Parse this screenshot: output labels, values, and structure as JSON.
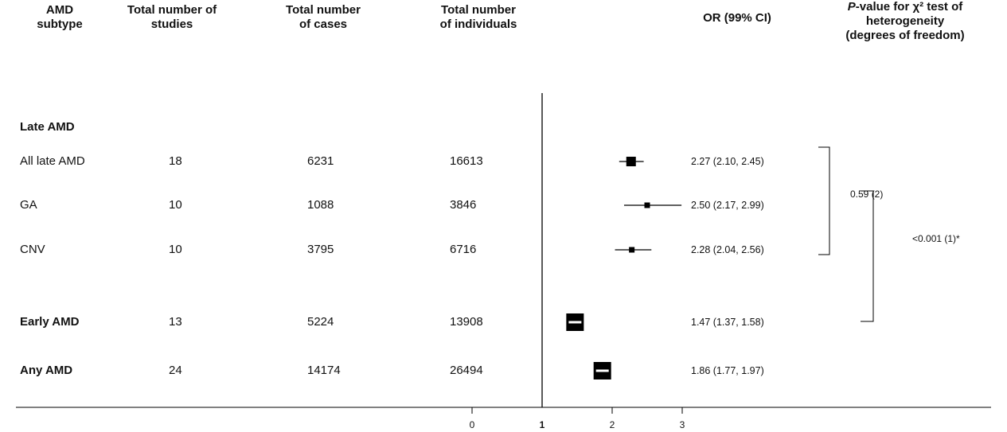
{
  "headers": {
    "subtype": [
      "AMD",
      "subtype"
    ],
    "studies": [
      "Total number of",
      "studies"
    ],
    "cases": [
      "Total number",
      "of cases"
    ],
    "individuals": [
      "Total number",
      "of individuals"
    ],
    "or": "OR (99% CI)",
    "het_p": "P",
    "het_rest": "-value for χ² test of",
    "het_line2": "heterogeneity",
    "het_line3": "(degrees of freedom)"
  },
  "section_label": "Late AMD",
  "rows": [
    {
      "subtype": "All late AMD",
      "studies": "18",
      "cases": "6231",
      "individuals": "16613",
      "or_text": "2.27 (2.10, 2.45)",
      "bold": false
    },
    {
      "subtype": "GA",
      "studies": "10",
      "cases": "1088",
      "individuals": "3846",
      "or_text": "2.50 (2.17, 2.99)",
      "bold": false
    },
    {
      "subtype": "CNV",
      "studies": "10",
      "cases": "3795",
      "individuals": "6716",
      "or_text": "2.28 (2.04, 2.56)",
      "bold": false
    },
    {
      "subtype": "Early AMD",
      "studies": "13",
      "cases": "5224",
      "individuals": "13908",
      "or_text": "1.47 (1.37, 1.58)",
      "bold": true
    },
    {
      "subtype": "Any AMD",
      "studies": "24",
      "cases": "14174",
      "individuals": "26494",
      "or_text": "1.86 (1.77, 1.97)",
      "bold": true
    }
  ],
  "heterogeneity": {
    "late_subtypes": "0.59 (2)",
    "late_vs_early": "<0.001 (1)*"
  },
  "chart_data": {
    "type": "forest",
    "x_ticks": [
      "0",
      "1",
      "2",
      "3"
    ],
    "reference_line": 1,
    "xlim": [
      0,
      3
    ],
    "series": [
      {
        "label": "All late AMD",
        "or": 2.27,
        "lower": 2.1,
        "upper": 2.45,
        "weight": "medium"
      },
      {
        "label": "GA",
        "or": 2.5,
        "lower": 2.17,
        "upper": 2.99,
        "weight": "small"
      },
      {
        "label": "CNV",
        "or": 2.28,
        "lower": 2.04,
        "upper": 2.56,
        "weight": "small"
      },
      {
        "label": "Early AMD",
        "or": 1.47,
        "lower": 1.37,
        "upper": 1.58,
        "weight": "large"
      },
      {
        "label": "Any AMD",
        "or": 1.86,
        "lower": 1.77,
        "upper": 1.97,
        "weight": "large"
      }
    ]
  }
}
